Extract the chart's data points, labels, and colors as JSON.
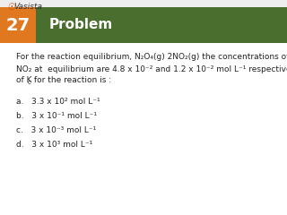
{
  "problem_number": "27",
  "header_text": "Problem",
  "header_bg": "#4a6e2e",
  "number_bg": "#e07820",
  "bg_color": "#f0f0f0",
  "content_bg": "#ffffff",
  "text_color": "#222222",
  "font_size_body": 6.5,
  "font_size_header": 11,
  "font_size_number": 14,
  "line1": "For the reaction equilibrium, N₂O₄(g) 2NO₂(g) the concentrations of N₂O₄ and",
  "line2": "NO₂ at  equilibrium are 4.8 x 10⁻² and 1.2 x 10⁻² mol L⁻¹ respectively. The value",
  "line3a": "of K",
  "line3b": "c",
  "line3c": " for the reaction is :",
  "opt_a": "a.   3.3 x 10² mol L⁻¹",
  "opt_b": "b.   3 x 10⁻¹ mol L⁻¹",
  "opt_c": "c.   3 x 10⁻³ mol L⁻¹",
  "opt_d": "d.   3 x 10³ mol L⁻¹"
}
